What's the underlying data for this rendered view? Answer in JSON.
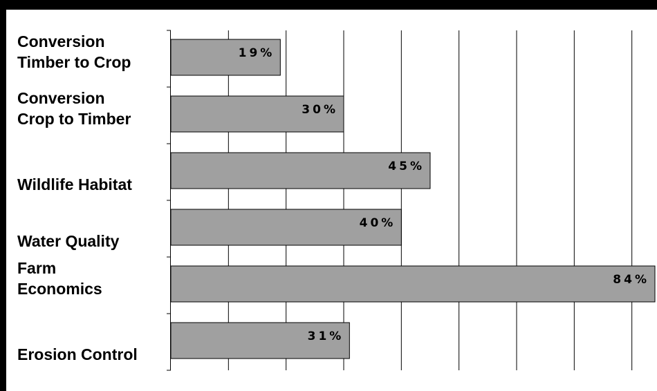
{
  "chart_data": {
    "type": "bar",
    "orientation": "horizontal",
    "categories": [
      [
        "Conversion",
        "Timber to Crop"
      ],
      [
        "Conversion",
        "Crop to Timber"
      ],
      [
        "Wildlife Habitat"
      ],
      [
        "Water Quality"
      ],
      [
        "Farm",
        "Economics"
      ],
      [
        "Erosion Control"
      ]
    ],
    "values": [
      19,
      30,
      45,
      40,
      84,
      31
    ],
    "data_labels": [
      "19%",
      "30%",
      "45%",
      "40%",
      "84%",
      "31%"
    ],
    "xlim": [
      0,
      84
    ],
    "x_grid_step": 10,
    "grid": true,
    "legend": "none",
    "title": "",
    "xlabel": "",
    "ylabel": "",
    "colors": {
      "bar_fill": "#a0a0a0",
      "bar_stroke": "#000000",
      "grid": "#000000",
      "frame": "#000000",
      "background": "#ffffff"
    }
  }
}
